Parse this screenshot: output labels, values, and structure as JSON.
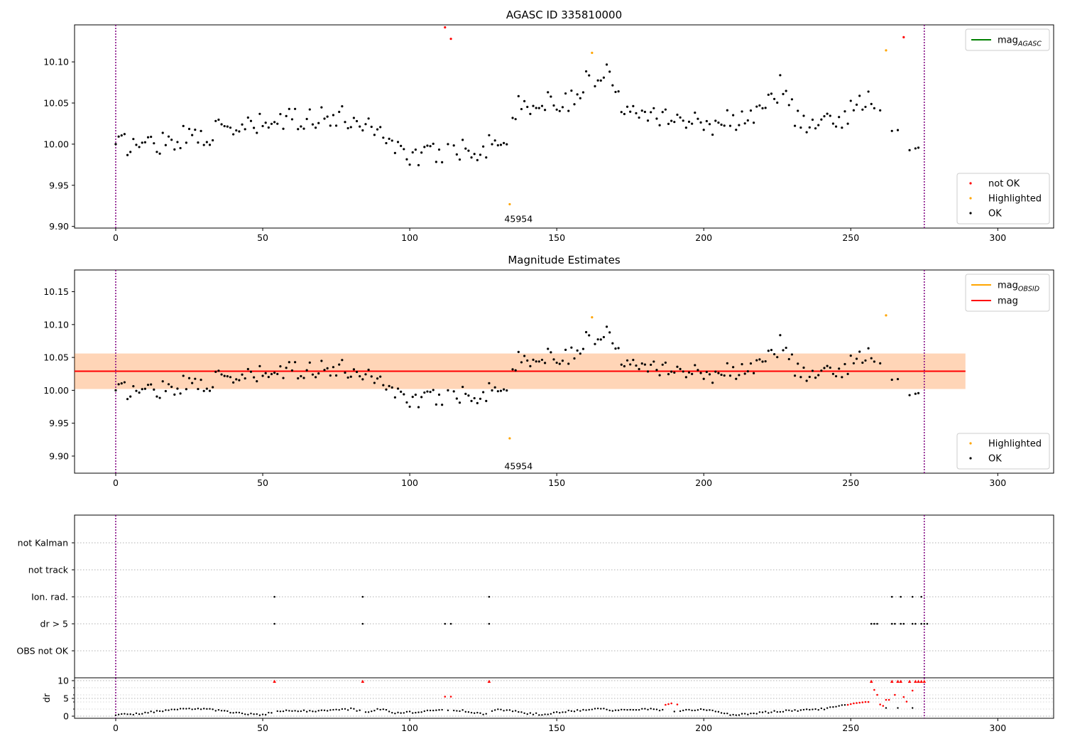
{
  "chart_data": [
    {
      "type": "scatter",
      "title": "AGASC ID 335810000",
      "xlim": [
        -14,
        319
      ],
      "ylim": [
        9.898,
        10.145
      ],
      "xticks": [
        0,
        50,
        100,
        150,
        200,
        250,
        300
      ],
      "yticks": [
        9.9,
        9.95,
        10.0,
        10.05,
        10.1
      ],
      "ytick_labels": [
        "9.90",
        "9.95",
        "10.00",
        "10.05",
        "10.10"
      ],
      "grid": false,
      "vlines": [
        0,
        275
      ],
      "annotations": [
        {
          "x": 137,
          "y": 9.909,
          "text": "45954"
        }
      ],
      "series": [
        {
          "name": "not OK",
          "color": "#ff0000",
          "x": [
            112,
            114,
            268
          ],
          "y": [
            10.142,
            10.128,
            10.13
          ]
        },
        {
          "name": "Highlighted",
          "color": "#ffa500",
          "x": [
            134,
            162,
            262
          ],
          "y": [
            9.927,
            10.111,
            10.114
          ]
        }
      ],
      "ok_x_range": [
        0,
        273
      ],
      "ok_color": "#000000",
      "legend_points": {
        "placement": "lower-right",
        "entries": [
          "not OK",
          "Highlighted",
          "OK"
        ]
      },
      "legend_lines": {
        "placement": "upper-right",
        "entries": [
          {
            "label": "mag",
            "sub": "AGASC",
            "color": "#008000"
          }
        ]
      }
    },
    {
      "type": "scatter",
      "title": "Magnitude Estimates",
      "xlim": [
        -14,
        319
      ],
      "ylim": [
        9.874,
        10.183
      ],
      "xticks": [
        0,
        50,
        100,
        150,
        200,
        250,
        300
      ],
      "yticks": [
        9.9,
        9.95,
        10.0,
        10.05,
        10.1,
        10.15
      ],
      "ytick_labels": [
        "9.90",
        "9.95",
        "10.00",
        "10.05",
        "10.10",
        "10.15"
      ],
      "grid": false,
      "vlines": [
        0,
        275
      ],
      "annotations": [
        {
          "x": 137,
          "y": 9.884,
          "text": "45954"
        }
      ],
      "mag": 10.029,
      "mag_obsid": 10.029,
      "band_mag": [
        10.002,
        10.056
      ],
      "band_obsid": [
        10.002,
        10.056
      ],
      "band_x": [
        -14,
        289
      ],
      "series": [
        {
          "name": "Highlighted",
          "color": "#ffa500",
          "x": [
            134,
            162,
            262
          ],
          "y": [
            9.927,
            10.111,
            10.114
          ]
        }
      ],
      "legend_points": {
        "placement": "lower-right",
        "entries": [
          "Highlighted",
          "OK"
        ]
      },
      "legend_lines": {
        "placement": "upper-right",
        "entries": [
          {
            "label": "mag",
            "sub": "OBSID",
            "color": "#ffa500"
          },
          {
            "label": "mag",
            "sub": "",
            "color": "#ff0000"
          }
        ]
      }
    },
    {
      "type": "scatter",
      "title": "",
      "xlim": [
        -14,
        319
      ],
      "categories": [
        "OBS not OK",
        "dr > 5",
        "Ion. rad.",
        "not track",
        "not Kalman"
      ],
      "grid": true,
      "vlines": [
        0,
        275
      ],
      "flags": {
        "Ion. rad.": [
          54,
          84,
          127,
          264,
          267,
          271,
          274
        ],
        "dr > 5": [
          54,
          84,
          112,
          114,
          127,
          257,
          258,
          259,
          264,
          265,
          267,
          268,
          271,
          272,
          274,
          275,
          276
        ]
      }
    },
    {
      "type": "scatter",
      "title": "",
      "ylabel": "dr",
      "xlim": [
        -14,
        319
      ],
      "ylim": [
        -0.6,
        10.8
      ],
      "xticks": [
        0,
        50,
        100,
        150,
        200,
        250,
        300
      ],
      "yticks": [
        0,
        5,
        10
      ],
      "ytick_labels": [
        "0",
        "5",
        "10"
      ],
      "grid": true,
      "vlines": [
        0,
        275
      ],
      "red_points": {
        "x": [
          54,
          84,
          112,
          114,
          127,
          187,
          188,
          189,
          191,
          249,
          250,
          251,
          252,
          253,
          254,
          255,
          256,
          257,
          258,
          259,
          260,
          261,
          262,
          263,
          264,
          265,
          266,
          267,
          268,
          269,
          270,
          271,
          272,
          273,
          274,
          275
        ],
        "y": [
          9.8,
          9.8,
          5.5,
          5.5,
          9.8,
          3.2,
          3.4,
          3.6,
          3.3,
          3.2,
          3.4,
          3.6,
          3.7,
          3.8,
          3.9,
          4.0,
          4.0,
          9.8,
          7.4,
          6.0,
          3.3,
          2.9,
          4.6,
          4.6,
          9.8,
          6.0,
          9.8,
          9.8,
          5.4,
          4.1,
          9.8,
          7.2,
          9.8,
          9.8,
          9.8,
          9.8
        ]
      }
    }
  ]
}
